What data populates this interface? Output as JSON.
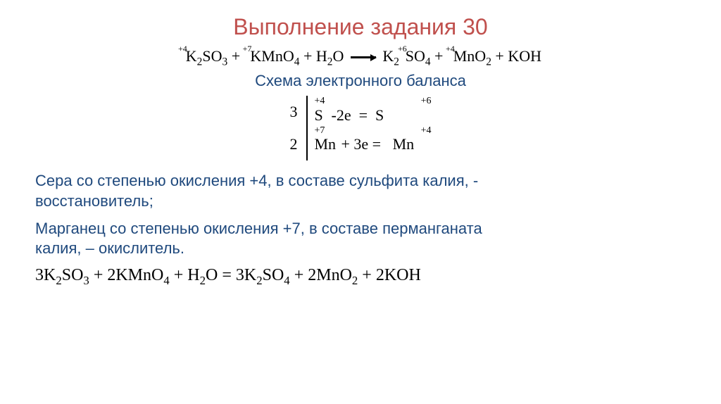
{
  "colors": {
    "title": "#c0504d",
    "scheme": "#1f497d",
    "statement": "#1f497d",
    "black": "#000000"
  },
  "title": "Выполнение задания 30",
  "equation": {
    "parts": [
      {
        "ox": "+4",
        "pre": "K",
        "sub1": "2",
        "mid": "SO",
        "sub2": "3"
      },
      {
        "op": " + "
      },
      {
        "ox": "+7",
        "pre": "KMnO",
        "sub1": "4"
      },
      {
        "op": " + H"
      },
      {
        "sub": "2"
      },
      {
        "txt": "O "
      },
      {
        "arrow": true
      },
      {
        "txt": " K"
      },
      {
        "sub": "2"
      },
      {
        "ox": "+6",
        "pre": "SO",
        "sub1": "4"
      },
      {
        "op": "  + "
      },
      {
        "ox": "+4",
        "pre": "MnO",
        "sub1": "2"
      },
      {
        "op": "  + KOH"
      }
    ]
  },
  "scheme_title": "Схема электронного баланса",
  "balance": {
    "row1": {
      "coef": "3",
      "ox_left": "+4",
      "left": "S",
      "change": "-2e",
      "ox_right": "+6",
      "right": "S"
    },
    "row2": {
      "coef": "2",
      "ox_left": "+7",
      "left": "Mn",
      "change": "+ 3e",
      "ox_right": "+4",
      "right": "Mn"
    }
  },
  "statements": {
    "s1a": "Сера со степенью окисления +4, в составе сульфита калия, -",
    "s1b": "восстановитель;",
    "s2a": "Марганец со степенью окисления +7, в составе перманганата",
    "s2b": "калия, – окислитель."
  },
  "final": {
    "c1": "3",
    "c2": "2",
    "c3": "3",
    "c4": "2",
    "c5": "2"
  }
}
